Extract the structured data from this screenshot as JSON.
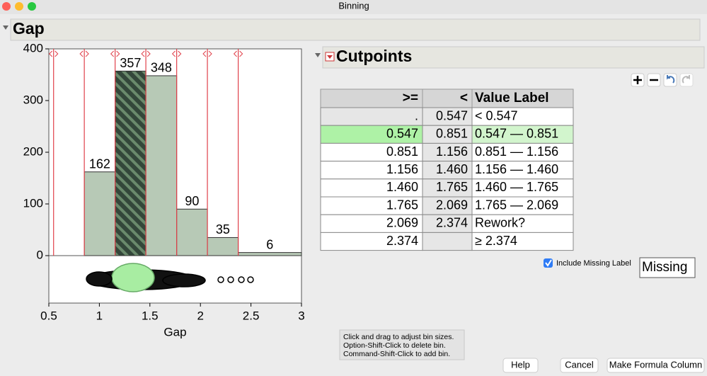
{
  "window_title": "Binning",
  "panel_title": "Gap",
  "chart_data": {
    "type": "histogram",
    "xlabel": "Gap",
    "bins": [
      0.547,
      0.851,
      1.156,
      1.46,
      1.765,
      2.069,
      2.374,
      3
    ],
    "counts": [
      0,
      162,
      357,
      348,
      90,
      35,
      6
    ],
    "color": "#b7c9b6",
    "selected_color": "#33473a",
    "selected_bin": 2,
    "cutpoint_color": "#e0404a",
    "xlim": [
      0.5,
      3
    ],
    "xticks": [
      0.5,
      1,
      1.5,
      2,
      2.5,
      3
    ],
    "ylim": [
      0,
      400
    ],
    "yticks": [
      0,
      100,
      200,
      300,
      400
    ]
  },
  "cutpoints": {
    "title": "Cutpoints",
    "columns": [
      ">=",
      "<",
      "Value Label"
    ],
    "rows": [
      [
        ".",
        "0.547",
        "< 0.547"
      ],
      [
        "0.547",
        "0.851",
        "0.547 — 0.851"
      ],
      [
        "0.851",
        "1.156",
        "0.851 — 1.156"
      ],
      [
        "1.156",
        "1.460",
        "1.156 — 1.460"
      ],
      [
        "1.460",
        "1.765",
        "1.460 — 1.765"
      ],
      [
        "1.765",
        "2.069",
        "1.765 — 2.069"
      ],
      [
        "2.069",
        "2.374",
        "Rework?"
      ],
      [
        "2.374",
        null,
        "≥ 2.374"
      ]
    ],
    "selected_row": 1
  },
  "missing": {
    "checkbox_label": "Include Missing Label",
    "checked": true,
    "value": "Missing"
  },
  "hint": [
    "Click and drag to adjust bin sizes.",
    "Option-Shift-Click to delete bin.",
    "Command-Shift-Click to add bin."
  ],
  "buttons": [
    "Help",
    "Cancel",
    "Make Formula Column"
  ]
}
